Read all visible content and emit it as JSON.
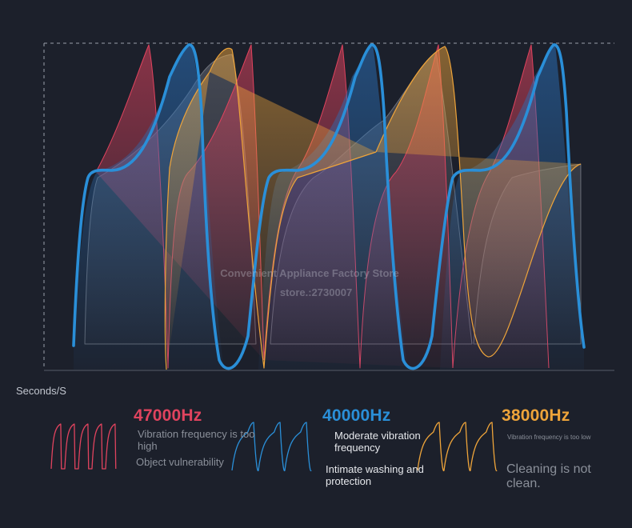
{
  "chart_data": {
    "type": "line",
    "title": "",
    "xlabel": "Seconds/S",
    "ylabel": "",
    "grid": false,
    "series": [
      {
        "name": "47000Hz",
        "color": "#e0435e",
        "cycles": 5,
        "shown": "thin filled waveform"
      },
      {
        "name": "40000Hz",
        "color": "#2a8fd8",
        "cycles": 3,
        "shown": "thick highlighted waveform"
      },
      {
        "name": "38000Hz",
        "color": "#eea43a",
        "cycles": 3,
        "shown": "thin filled waveform"
      }
    ]
  },
  "watermark": {
    "line1": "Convenient Appliance Factory Store",
    "line2": "store.:2730007"
  },
  "legend": {
    "hz47": {
      "label": "47000Hz",
      "color": "#e0435e",
      "desc1": "Vibration frequency is too high",
      "desc2": "Object vulnerability",
      "icon": "red-wave-icon"
    },
    "hz40": {
      "label": "40000Hz",
      "color": "#2a8fd8",
      "desc1": "Moderate vibration frequency",
      "desc2": "Intimate washing and protection",
      "icon": "blue-wave-icon"
    },
    "hz38": {
      "label": "38000Hz",
      "color": "#eea43a",
      "desc1": "Vibration frequency is too low",
      "desc2": "Cleaning is not clean.",
      "icon": "orange-wave-icon"
    }
  }
}
